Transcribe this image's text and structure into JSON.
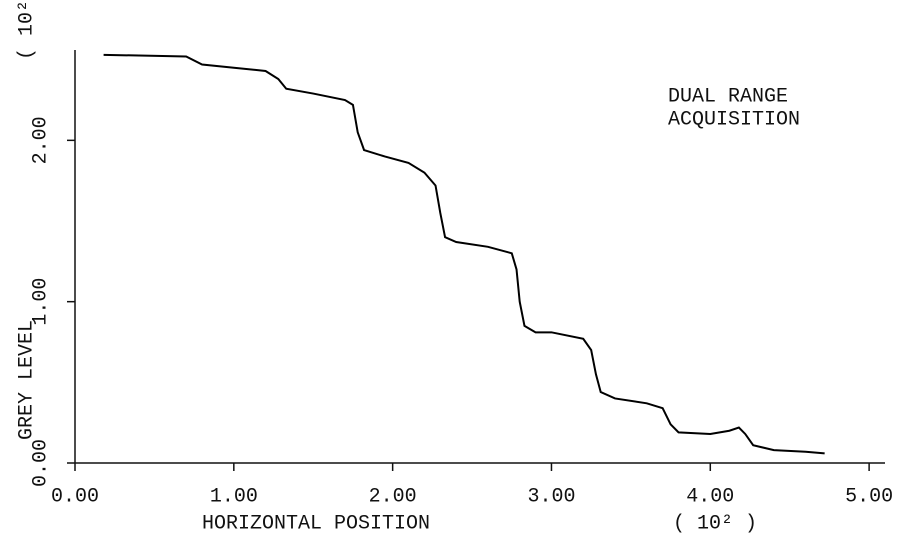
{
  "chart_data": {
    "type": "line",
    "annotation": [
      "DUAL RANGE",
      "ACQUISITION"
    ],
    "x_label": "HORIZONTAL POSITION",
    "x_unit": "( 10² )",
    "y_label": "GREY LEVEL",
    "y_unit": "( 10²",
    "x": [
      0.18,
      0.7,
      0.8,
      1.0,
      1.2,
      1.28,
      1.33,
      1.5,
      1.7,
      1.75,
      1.78,
      1.82,
      1.95,
      2.1,
      2.2,
      2.27,
      2.3,
      2.33,
      2.4,
      2.6,
      2.75,
      2.78,
      2.8,
      2.83,
      2.9,
      3.0,
      3.2,
      3.25,
      3.28,
      3.31,
      3.4,
      3.6,
      3.7,
      3.75,
      3.8,
      4.0,
      4.12,
      4.18,
      4.22,
      4.27,
      4.4,
      4.6,
      4.72
    ],
    "series": [
      {
        "color": "#000000",
        "values": [
          2.53,
          2.52,
          2.47,
          2.45,
          2.43,
          2.38,
          2.32,
          2.29,
          2.25,
          2.22,
          2.05,
          1.94,
          1.9,
          1.86,
          1.8,
          1.72,
          1.55,
          1.4,
          1.37,
          1.34,
          1.3,
          1.2,
          1.0,
          0.85,
          0.81,
          0.81,
          0.77,
          0.7,
          0.55,
          0.44,
          0.4,
          0.37,
          0.34,
          0.24,
          0.19,
          0.18,
          0.2,
          0.22,
          0.18,
          0.11,
          0.08,
          0.07,
          0.06
        ]
      }
    ],
    "xlim": [
      0,
      5.1
    ],
    "ylim": [
      0,
      2.56
    ],
    "xticks": [
      {
        "value": 0,
        "label": "0.00"
      },
      {
        "value": 1,
        "label": "1.00"
      },
      {
        "value": 2,
        "label": "2.00"
      },
      {
        "value": 3,
        "label": "3.00"
      },
      {
        "value": 4,
        "label": "4.00"
      },
      {
        "value": 5,
        "label": "5.00"
      }
    ],
    "yticks": [
      {
        "value": 0,
        "label": "0.00"
      },
      {
        "value": 1,
        "label": "1.00"
      },
      {
        "value": 2,
        "label": "2.00"
      }
    ],
    "grid": false
  }
}
